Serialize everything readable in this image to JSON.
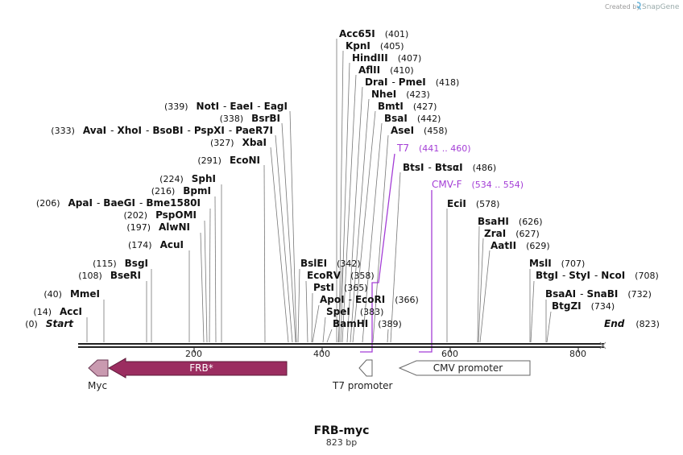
{
  "credit": {
    "prefix": "Created by",
    "brand": "SnapGene"
  },
  "map": {
    "name": "FRB-myc",
    "length_label": "823 bp",
    "ruler": [
      "200",
      "400",
      "600",
      "800"
    ]
  },
  "enzymes": [
    {
      "text": "Acc65I",
      "pos": "(401)"
    },
    {
      "text": "KpnI",
      "pos": "(405)"
    },
    {
      "text": "HindIII",
      "pos": "(407)"
    },
    {
      "text": "AflII",
      "pos": "(410)"
    },
    {
      "text": "DraI",
      "sep": "-",
      "text2": "PmeI",
      "pos": "(418)"
    },
    {
      "text": "NheI",
      "pos": "(423)"
    },
    {
      "text": "BmtI",
      "pos": "(427)"
    },
    {
      "text": "BsaI",
      "pos": "(442)"
    },
    {
      "text": "AseI",
      "pos": "(458)"
    },
    {
      "text": "BtsI",
      "sep": "-",
      "text2": "BtsαI",
      "pos": "(486)"
    },
    {
      "text": "EciI",
      "pos": "(578)"
    },
    {
      "text": "BsaHI",
      "pos": "(626)"
    },
    {
      "text": "ZraI",
      "pos": "(627)"
    },
    {
      "text": "AatII",
      "pos": "(629)"
    },
    {
      "text": "MslI",
      "pos": "(707)"
    },
    {
      "text": "BtgI",
      "sep": "-",
      "text2": "StyI",
      "sep2": "-",
      "text3": "NcoI",
      "pos": "(708)"
    },
    {
      "text": "BsaAI",
      "sep": "-",
      "text2": "SnaBI",
      "pos": "(732)"
    },
    {
      "text": "BtgZI",
      "pos": "(734)"
    },
    {
      "text": "End",
      "pos": "(823)"
    },
    {
      "pos": "(339)",
      "text": "NotI",
      "sep": "-",
      "text2": "EaeI",
      "sep2": "-",
      "text3": "EagI"
    },
    {
      "pos": "(338)",
      "text": "BsrBI"
    },
    {
      "pos": "(333)",
      "text": "AvaI",
      "sep": "-",
      "text2": "XhoI",
      "sep2": "-",
      "text3": "BsoBI",
      "sep3": "-",
      "text4": "PspXI",
      "sep4": "-",
      "text5": "PaeR7I"
    },
    {
      "pos": "(327)",
      "text": "XbaI"
    },
    {
      "pos": "(291)",
      "text": "EcoNI"
    },
    {
      "pos": "(224)",
      "text": "SphI"
    },
    {
      "pos": "(216)",
      "text": "BpmI"
    },
    {
      "pos": "(206)",
      "text": "ApaI",
      "sep": "-",
      "text2": "BaeGI",
      "sep2": "-",
      "text3": "Bme1580I"
    },
    {
      "pos": "(202)",
      "text": "PspOMI"
    },
    {
      "pos": "(197)",
      "text": "AlwNI"
    },
    {
      "pos": "(174)",
      "text": "AcuI"
    },
    {
      "pos": "(115)",
      "text": "BsgI"
    },
    {
      "pos": "(108)",
      "text": "BseRI"
    },
    {
      "pos": "(40)",
      "text": "MmeI"
    },
    {
      "pos": "(14)",
      "text": "AccI"
    },
    {
      "pos": "(0)",
      "text": "Start"
    },
    {
      "text": "BslEI",
      "pos": "(342)"
    },
    {
      "text": "EcoRV",
      "pos": "(358)"
    },
    {
      "text": "PstI",
      "pos": "(365)"
    },
    {
      "text": "ApoI",
      "sep": "-",
      "text2": "EcoRI",
      "pos": "(366)"
    },
    {
      "text": "SpeI",
      "pos": "(383)"
    },
    {
      "text": "BamHI",
      "pos": "(389)"
    }
  ],
  "primers": [
    {
      "name": "T7",
      "range": "(441 .. 460)"
    },
    {
      "name": "CMV-F",
      "range": "(534 .. 554)"
    }
  ],
  "features": [
    {
      "name": "Myc"
    },
    {
      "name": "FRB*"
    },
    {
      "name": "T7 promoter"
    },
    {
      "name": "CMV promoter"
    }
  ]
}
